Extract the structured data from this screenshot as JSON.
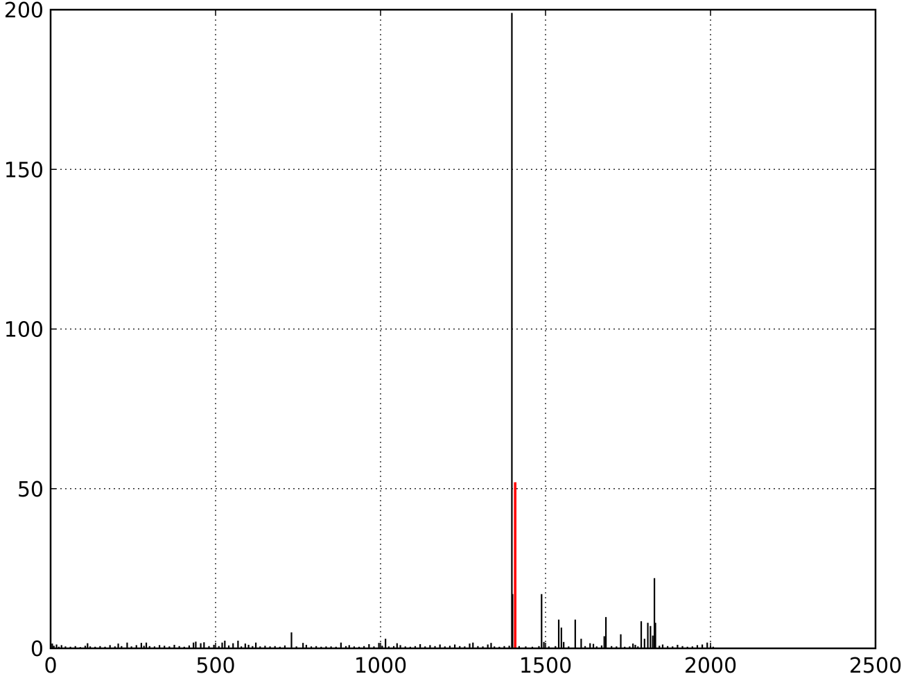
{
  "chart_data": {
    "type": "bar",
    "title": "",
    "xlabel": "",
    "ylabel": "",
    "xlim": [
      0,
      2500
    ],
    "ylim": [
      0,
      200
    ],
    "x_ticks": [
      0,
      500,
      1000,
      1500,
      2000,
      2500
    ],
    "y_ticks": [
      0,
      50,
      100,
      150,
      200
    ],
    "grid": true,
    "series": [
      {
        "color": "#000000",
        "points": [
          [
            5,
            1.5
          ],
          [
            10,
            0.8
          ],
          [
            18,
            1.2
          ],
          [
            25,
            0.5
          ],
          [
            33,
            1.0
          ],
          [
            45,
            0.6
          ],
          [
            60,
            0.5
          ],
          [
            75,
            0.7
          ],
          [
            90,
            0.4
          ],
          [
            105,
            0.8
          ],
          [
            112,
            1.6
          ],
          [
            120,
            0.6
          ],
          [
            135,
            0.5
          ],
          [
            150,
            0.7
          ],
          [
            165,
            0.5
          ],
          [
            180,
            1.0
          ],
          [
            195,
            0.6
          ],
          [
            205,
            1.5
          ],
          [
            215,
            0.7
          ],
          [
            232,
            1.8
          ],
          [
            245,
            0.6
          ],
          [
            260,
            1.0
          ],
          [
            275,
            1.7
          ],
          [
            283,
            0.8
          ],
          [
            290,
            1.8
          ],
          [
            300,
            0.7
          ],
          [
            315,
            0.6
          ],
          [
            330,
            1.0
          ],
          [
            345,
            0.8
          ],
          [
            360,
            0.6
          ],
          [
            375,
            1.1
          ],
          [
            390,
            0.7
          ],
          [
            405,
            0.5
          ],
          [
            420,
            0.9
          ],
          [
            433,
            1.8
          ],
          [
            440,
            2.1
          ],
          [
            455,
            1.6
          ],
          [
            465,
            1.9
          ],
          [
            480,
            0.7
          ],
          [
            495,
            1.1
          ],
          [
            510,
            0.7
          ],
          [
            520,
            1.8
          ],
          [
            528,
            2.4
          ],
          [
            540,
            0.9
          ],
          [
            553,
            1.6
          ],
          [
            568,
            2.4
          ],
          [
            578,
            0.6
          ],
          [
            590,
            1.5
          ],
          [
            600,
            1.1
          ],
          [
            612,
            0.7
          ],
          [
            622,
            1.8
          ],
          [
            635,
            0.6
          ],
          [
            650,
            0.8
          ],
          [
            665,
            0.6
          ],
          [
            680,
            0.7
          ],
          [
            695,
            0.5
          ],
          [
            710,
            0.9
          ],
          [
            730,
            5.0
          ],
          [
            745,
            0.6
          ],
          [
            765,
            1.7
          ],
          [
            775,
            1.1
          ],
          [
            790,
            0.6
          ],
          [
            805,
            0.7
          ],
          [
            820,
            0.5
          ],
          [
            835,
            0.6
          ],
          [
            850,
            0.6
          ],
          [
            865,
            0.5
          ],
          [
            880,
            1.8
          ],
          [
            895,
            0.7
          ],
          [
            905,
            1.0
          ],
          [
            920,
            0.6
          ],
          [
            935,
            0.5
          ],
          [
            950,
            0.7
          ],
          [
            965,
            1.3
          ],
          [
            980,
            0.6
          ],
          [
            995,
            1.7
          ],
          [
            1005,
            0.8
          ],
          [
            1015,
            3.0
          ],
          [
            1025,
            0.6
          ],
          [
            1040,
            0.7
          ],
          [
            1050,
            1.6
          ],
          [
            1060,
            1.0
          ],
          [
            1075,
            0.6
          ],
          [
            1090,
            0.5
          ],
          [
            1105,
            0.7
          ],
          [
            1120,
            1.3
          ],
          [
            1135,
            0.6
          ],
          [
            1150,
            1.0
          ],
          [
            1165,
            0.7
          ],
          [
            1180,
            1.2
          ],
          [
            1195,
            0.6
          ],
          [
            1210,
            0.8
          ],
          [
            1225,
            1.2
          ],
          [
            1240,
            0.7
          ],
          [
            1255,
            0.6
          ],
          [
            1270,
            1.5
          ],
          [
            1280,
            1.8
          ],
          [
            1295,
            0.7
          ],
          [
            1310,
            0.6
          ],
          [
            1325,
            1.2
          ],
          [
            1335,
            1.7
          ],
          [
            1345,
            0.6
          ],
          [
            1360,
            0.5
          ],
          [
            1375,
            0.7
          ],
          [
            1390,
            0.8
          ],
          [
            1398,
            199
          ],
          [
            1400,
            17
          ],
          [
            1420,
            0.7
          ],
          [
            1440,
            0.6
          ],
          [
            1460,
            0.5
          ],
          [
            1480,
            0.7
          ],
          [
            1488,
            17
          ],
          [
            1495,
            2.0
          ],
          [
            1510,
            0.6
          ],
          [
            1530,
            0.7
          ],
          [
            1540,
            9.0
          ],
          [
            1548,
            6.5
          ],
          [
            1555,
            2.0
          ],
          [
            1570,
            0.6
          ],
          [
            1590,
            9.0
          ],
          [
            1608,
            3.0
          ],
          [
            1620,
            0.7
          ],
          [
            1635,
            1.6
          ],
          [
            1645,
            1.4
          ],
          [
            1655,
            0.6
          ],
          [
            1670,
            0.9
          ],
          [
            1678,
            3.8
          ],
          [
            1683,
            9.8
          ],
          [
            1700,
            0.7
          ],
          [
            1715,
            0.6
          ],
          [
            1728,
            4.4
          ],
          [
            1740,
            0.5
          ],
          [
            1755,
            0.6
          ],
          [
            1765,
            1.5
          ],
          [
            1772,
            1.1
          ],
          [
            1780,
            0.6
          ],
          [
            1790,
            8.5
          ],
          [
            1800,
            3.0
          ],
          [
            1810,
            8.0
          ],
          [
            1818,
            7.0
          ],
          [
            1825,
            4.0
          ],
          [
            1830,
            22
          ],
          [
            1833,
            8.0
          ],
          [
            1845,
            0.8
          ],
          [
            1855,
            1.2
          ],
          [
            1870,
            0.7
          ],
          [
            1885,
            0.6
          ],
          [
            1900,
            1.1
          ],
          [
            1915,
            0.7
          ],
          [
            1930,
            0.5
          ],
          [
            1945,
            0.6
          ],
          [
            1960,
            1.0
          ],
          [
            1975,
            1.2
          ],
          [
            1990,
            1.8
          ],
          [
            2000,
            0.6
          ],
          [
            2008,
            0.5
          ]
        ]
      },
      {
        "color": "#ff0000",
        "points": [
          [
            1408,
            52
          ]
        ]
      }
    ]
  }
}
